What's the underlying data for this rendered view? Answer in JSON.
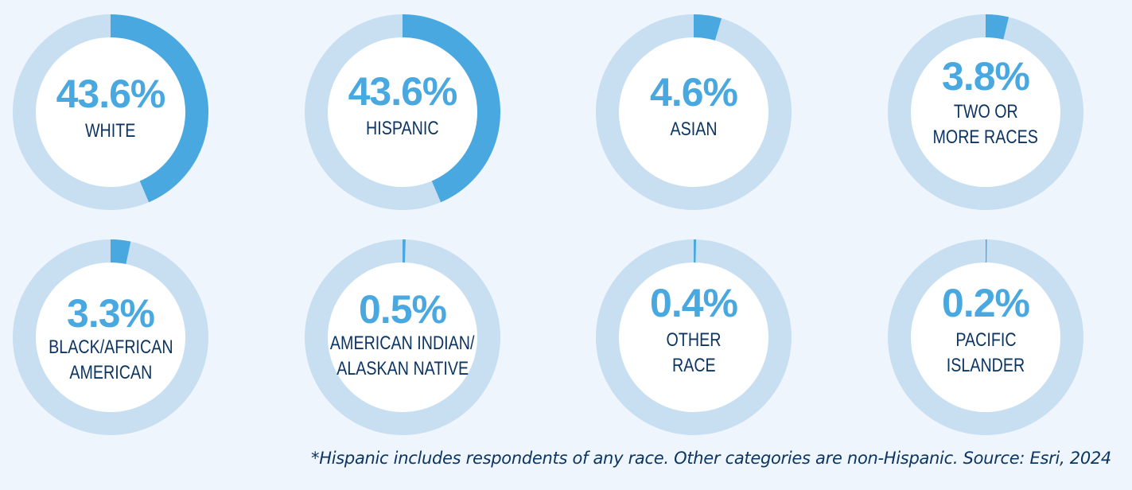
{
  "colors": {
    "background": "#eff5fc",
    "ring_track": "#c8dff2",
    "ring_fill": "#49a8df",
    "center_fill": "#ffffff",
    "percent_text": "#49a8df",
    "label_text": "#0d3561"
  },
  "donuts": [
    {
      "percent": "43.6%",
      "label_lines": [
        "WHITE"
      ],
      "value": 43.6
    },
    {
      "percent": "43.6%",
      "label_lines": [
        "HISPANIC"
      ],
      "value": 43.6
    },
    {
      "percent": "4.6%",
      "label_lines": [
        "ASIAN"
      ],
      "value": 4.6
    },
    {
      "percent": "3.8%",
      "label_lines": [
        "TWO OR",
        "MORE RACES"
      ],
      "value": 3.8
    },
    {
      "percent": "3.3%",
      "label_lines": [
        "BLACK/AFRICAN",
        "AMERICAN"
      ],
      "value": 3.3
    },
    {
      "percent": "0.5%",
      "label_lines": [
        "AMERICAN INDIAN/",
        "ALASKAN NATIVE"
      ],
      "value": 0.5
    },
    {
      "percent": "0.4%",
      "label_lines": [
        "OTHER",
        "RACE"
      ],
      "value": 0.4
    },
    {
      "percent": "0.2%",
      "label_lines": [
        "PACIFIC",
        "ISLANDER"
      ],
      "value": 0.2
    }
  ],
  "footnote": "*Hispanic includes respondents of any race. Other categories are non-Hispanic. Source: Esri, 2024",
  "chart_data": {
    "type": "pie",
    "subtype": "donut-grid",
    "title": "",
    "categories": [
      "White",
      "Hispanic",
      "Asian",
      "Two or More Races",
      "Black/African American",
      "American Indian/Alaskan Native",
      "Other Race",
      "Pacific Islander"
    ],
    "values": [
      43.6,
      43.6,
      4.6,
      3.8,
      3.3,
      0.5,
      0.4,
      0.2
    ],
    "unit": "%",
    "layout": {
      "rows": 2,
      "columns": 4
    },
    "annotations": [
      "*Hispanic includes respondents of any race. Other categories are non-Hispanic. Source: Esri, 2024"
    ]
  }
}
